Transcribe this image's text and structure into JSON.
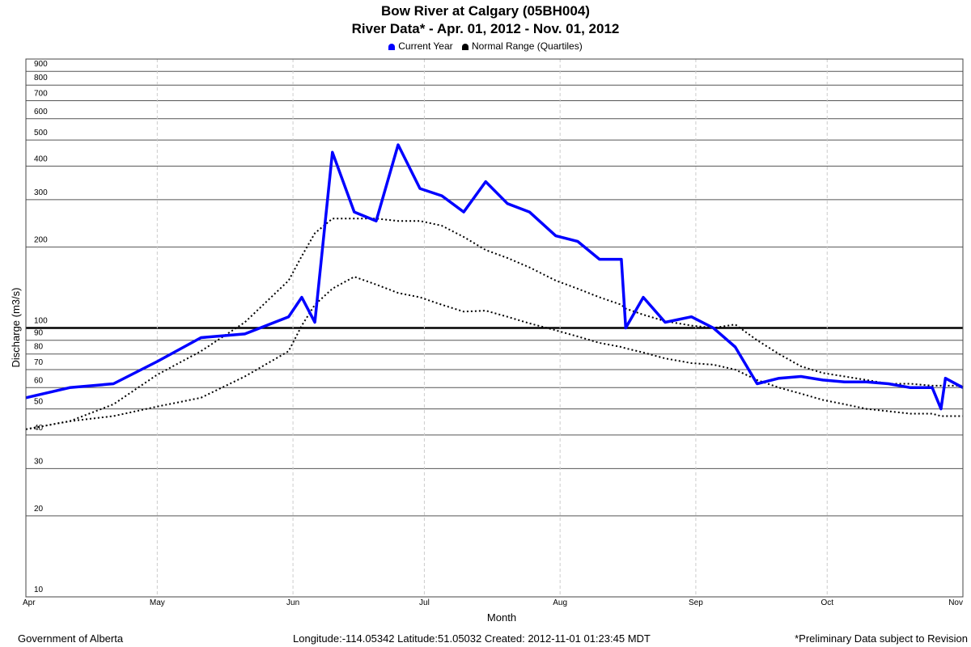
{
  "chart_data": {
    "type": "line",
    "title": "Bow River at Calgary (05BH004)",
    "subtitle": "River Data* - Apr. 01, 2012 - Nov. 01, 2012",
    "xlabel": "Month",
    "ylabel": "Discharge (m3/s)",
    "yscale": "log",
    "ylim": [
      10,
      1000
    ],
    "grid": true,
    "legend_position": "top-center",
    "x_ticks": [
      "Apr",
      "May",
      "Jun",
      "Jul",
      "Aug",
      "Sep",
      "Oct",
      "Nov"
    ],
    "y_ticks": [
      10,
      20,
      30,
      40,
      50,
      60,
      70,
      80,
      90,
      100,
      200,
      300,
      400,
      500,
      600,
      700,
      800,
      900
    ],
    "reference_line": 100,
    "x": [
      "Apr 01",
      "Apr 11",
      "Apr 21",
      "May 01",
      "May 11",
      "May 21",
      "May 31",
      "Jun 03",
      "Jun 06",
      "Jun 10",
      "Jun 15",
      "Jun 20",
      "Jun 25",
      "Jun 30",
      "Jul 05",
      "Jul 10",
      "Jul 15",
      "Jul 20",
      "Jul 25",
      "Jul 31",
      "Aug 05",
      "Aug 10",
      "Aug 15",
      "Aug 16",
      "Aug 20",
      "Aug 25",
      "Aug 31",
      "Sep 05",
      "Sep 10",
      "Sep 15",
      "Sep 20",
      "Sep 25",
      "Sep 30",
      "Oct 05",
      "Oct 10",
      "Oct 15",
      "Oct 20",
      "Oct 25",
      "Oct 27",
      "Oct 28",
      "Nov 01"
    ],
    "series": [
      {
        "name": "Current Year",
        "color": "#0000ff",
        "values": [
          55,
          60,
          62,
          75,
          92,
          95,
          110,
          130,
          105,
          450,
          270,
          250,
          480,
          330,
          310,
          270,
          350,
          290,
          270,
          220,
          210,
          180,
          180,
          100,
          130,
          105,
          110,
          100,
          85,
          62,
          65,
          66,
          64,
          63,
          63,
          62,
          60,
          60,
          50,
          65,
          60
        ]
      },
      {
        "name": "Normal Range (Quartiles) upper",
        "color": "#000000",
        "values": [
          42,
          45,
          52,
          67,
          82,
          105,
          150,
          185,
          225,
          255,
          255,
          255,
          250,
          250,
          240,
          218,
          195,
          182,
          168,
          150,
          140,
          130,
          122,
          118,
          112,
          106,
          102,
          100,
          103,
          90,
          80,
          72,
          68,
          66,
          64,
          62,
          62,
          61,
          61,
          61,
          61
        ]
      },
      {
        "name": "Normal Range (Quartiles) lower",
        "color": "#000000",
        "values": [
          42,
          45,
          47,
          51,
          55,
          66,
          82,
          102,
          122,
          140,
          155,
          145,
          135,
          130,
          122,
          115,
          116,
          110,
          104,
          98,
          93,
          88,
          85,
          84,
          81,
          77,
          74,
          73,
          70,
          64,
          60,
          57,
          54,
          52,
          50,
          49,
          48,
          48,
          47,
          47,
          47
        ]
      }
    ]
  },
  "legend": {
    "items": [
      {
        "label": "Current Year",
        "color": "#0000ff"
      },
      {
        "label": "Normal Range (Quartiles)",
        "color": "#000000"
      }
    ]
  },
  "footer": {
    "left": "Government of Alberta",
    "center": "Longitude:-114.05342 Latitude:51.05032   Created:  2012-11-01 01:23:45 MDT",
    "right": "*Preliminary Data subject to Revision"
  }
}
